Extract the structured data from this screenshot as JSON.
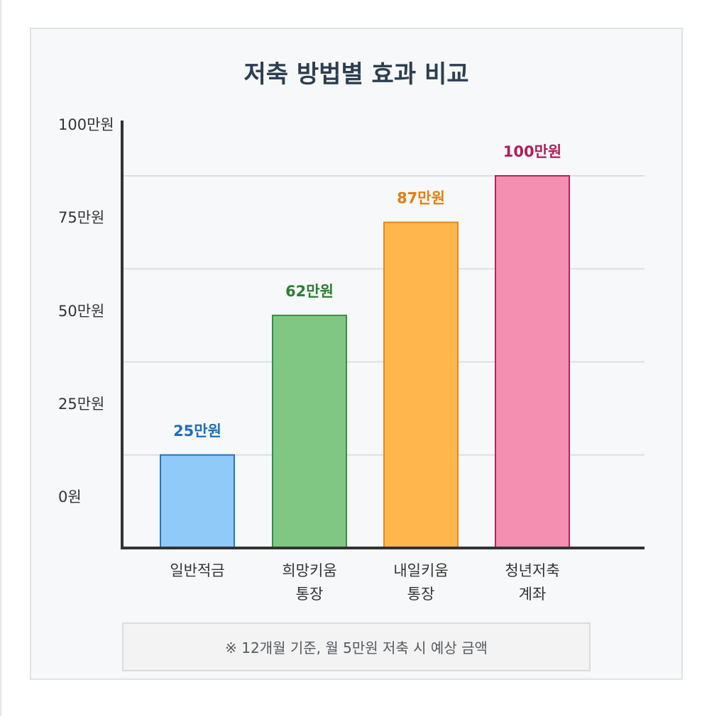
{
  "chart_data": {
    "type": "bar",
    "title": "저축 방법별 효과 비교",
    "categories": [
      [
        "일반적금"
      ],
      [
        "희망키움",
        "통장"
      ],
      [
        "내일키움",
        "통장"
      ],
      [
        "청년저축",
        "계좌"
      ]
    ],
    "values": [
      25,
      62,
      87,
      100
    ],
    "value_labels": [
      "25만원",
      "62만원",
      "87만원",
      "100만원"
    ],
    "y_ticks": [
      {
        "value": 0,
        "label": "0원"
      },
      {
        "value": 25,
        "label": "25만원"
      },
      {
        "value": 50,
        "label": "50만원"
      },
      {
        "value": 75,
        "label": "75만원"
      },
      {
        "value": 100,
        "label": "100만원"
      }
    ],
    "ylim": [
      0,
      115
    ],
    "grid": true,
    "colors": {
      "fill": [
        "#90caf9",
        "#81c784",
        "#ffb74d",
        "#f48fb1"
      ],
      "stroke": [
        "#1e78c2",
        "#388e3c",
        "#e08a1a",
        "#b0245e"
      ],
      "label": [
        "#1e6eb5",
        "#2e7d32",
        "#e0800f",
        "#b01e5a"
      ]
    }
  },
  "footnote": "※ 12개월 기준, 월 5만원 저축 시 예상 금액"
}
